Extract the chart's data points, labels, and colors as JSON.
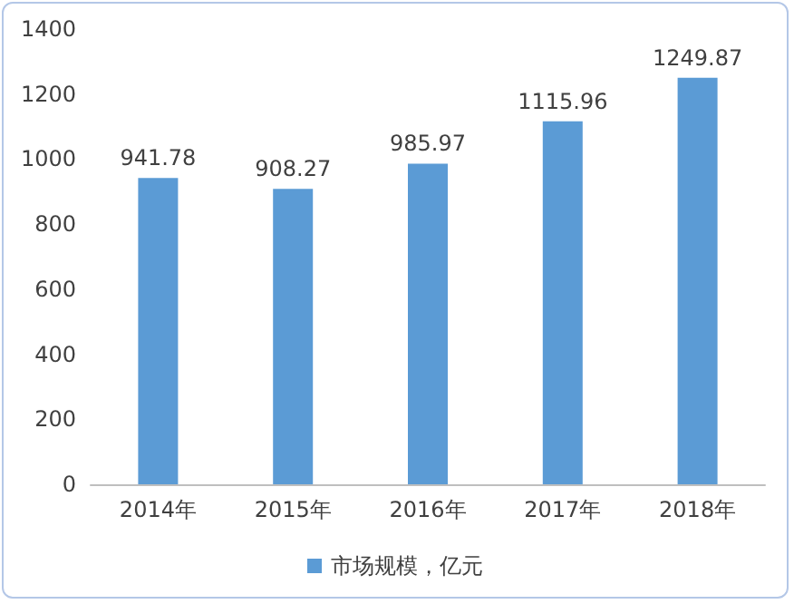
{
  "chart_data": {
    "type": "bar",
    "categories": [
      "2014年",
      "2015年",
      "2016年",
      "2017年",
      "2018年"
    ],
    "series": [
      {
        "name": "市场规模，亿元",
        "color": "#5b9bd5",
        "values": [
          941.78,
          908.27,
          985.97,
          1115.96,
          1249.87
        ]
      }
    ],
    "ylim": [
      0,
      1400
    ],
    "yticks": [
      0,
      200,
      400,
      600,
      800,
      1000,
      1200,
      1400
    ],
    "grid": false,
    "legend": "bottom",
    "data_labels": true
  }
}
